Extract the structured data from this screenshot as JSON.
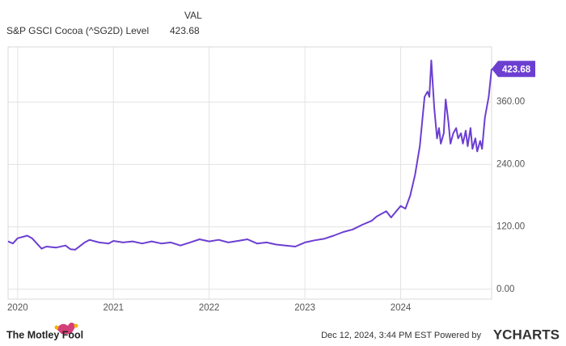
{
  "chart_data": {
    "type": "line",
    "legend_header": "VAL",
    "x": [
      2019.9,
      2019.95,
      2020.0,
      2020.1,
      2020.15,
      2020.25,
      2020.3,
      2020.4,
      2020.5,
      2020.55,
      2020.6,
      2020.7,
      2020.75,
      2020.85,
      2020.95,
      2021.0,
      2021.1,
      2021.2,
      2021.3,
      2021.4,
      2021.5,
      2021.6,
      2021.7,
      2021.8,
      2021.9,
      2022.0,
      2022.1,
      2022.2,
      2022.3,
      2022.4,
      2022.5,
      2022.6,
      2022.7,
      2022.8,
      2022.9,
      2023.0,
      2023.1,
      2023.2,
      2023.3,
      2023.4,
      2023.5,
      2023.6,
      2023.7,
      2023.75,
      2023.85,
      2023.9,
      2024.0,
      2024.05,
      2024.1,
      2024.15,
      2024.2,
      2024.25,
      2024.28,
      2024.3,
      2024.32,
      2024.35,
      2024.38,
      2024.4,
      2024.42,
      2024.45,
      2024.47,
      2024.5,
      2024.52,
      2024.55,
      2024.58,
      2024.6,
      2024.63,
      2024.65,
      2024.68,
      2024.7,
      2024.73,
      2024.75,
      2024.78,
      2024.8,
      2024.83,
      2024.85,
      2024.88,
      2024.92,
      2024.95
    ],
    "series": [
      {
        "name": "S&P GSCI Cocoa (^SG2D) Level",
        "color": "#6c3fd1",
        "values": [
          92,
          88,
          98,
          103,
          98,
          78,
          82,
          80,
          84,
          77,
          76,
          90,
          95,
          90,
          88,
          93,
          90,
          92,
          88,
          92,
          88,
          90,
          84,
          90,
          96,
          92,
          95,
          90,
          93,
          96,
          88,
          90,
          86,
          84,
          82,
          90,
          94,
          97,
          103,
          110,
          115,
          124,
          132,
          140,
          150,
          138,
          160,
          155,
          180,
          220,
          275,
          370,
          380,
          370,
          440,
          350,
          290,
          310,
          280,
          300,
          365,
          320,
          280,
          300,
          310,
          290,
          300,
          280,
          305,
          275,
          310,
          270,
          290,
          265,
          285,
          270,
          330,
          370,
          423.68
        ]
      }
    ],
    "xlim": [
      2019.9,
      2024.95
    ],
    "xticks": [
      2020,
      2021,
      2022,
      2023,
      2024
    ],
    "ylim": [
      -19,
      466
    ],
    "yticks": [
      {
        "value": 0,
        "label": "0.00"
      },
      {
        "value": 120,
        "label": "120.00"
      },
      {
        "value": 240,
        "label": "240.00"
      },
      {
        "value": 360,
        "label": "360.00"
      }
    ],
    "grid": true,
    "footer": {
      "brand": "The Motley Fool",
      "timestamp": "Dec 12, 2024, 3:44 PM EST  Powered by",
      "powered": "YCHARTS"
    }
  }
}
